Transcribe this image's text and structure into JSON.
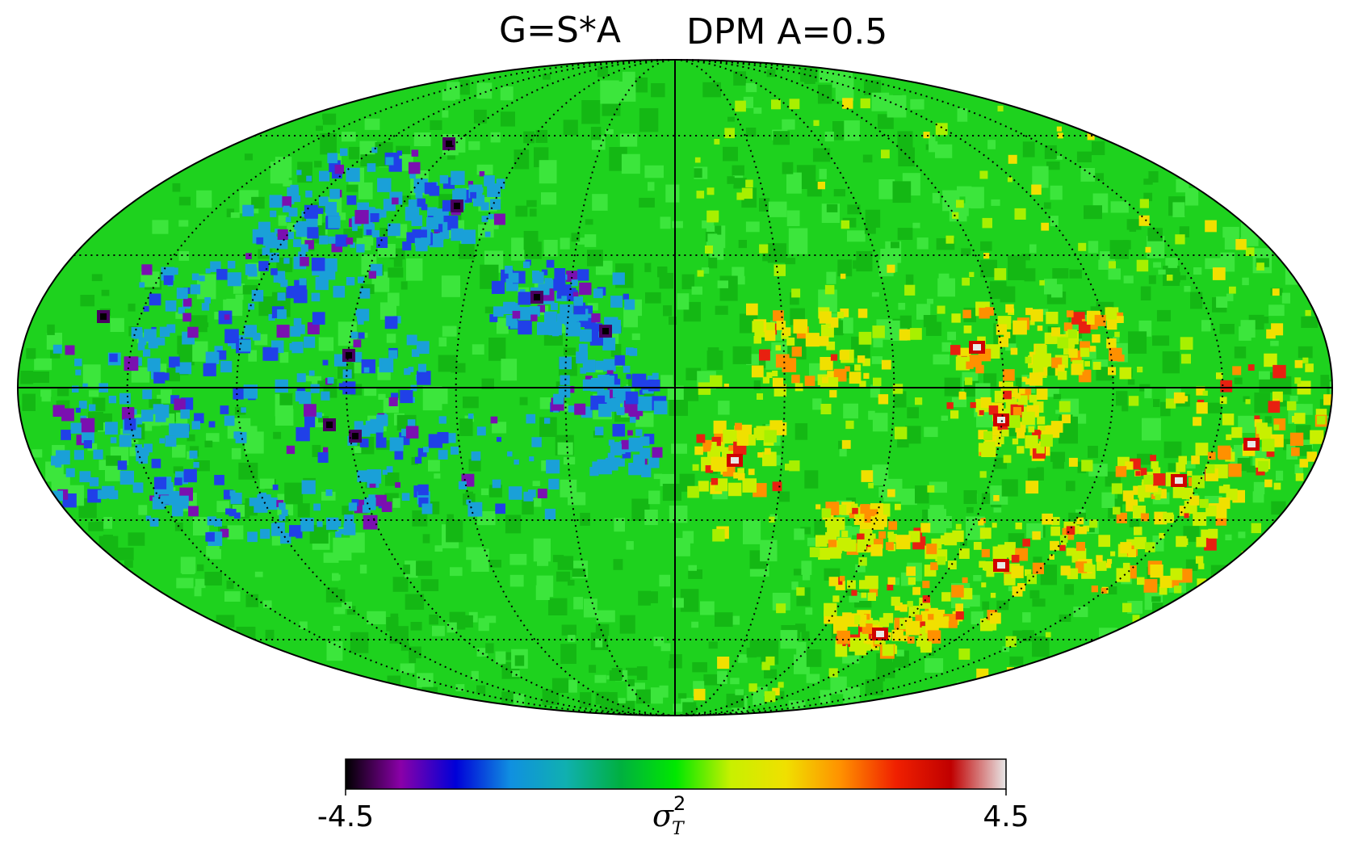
{
  "title": {
    "left": "G=S*A",
    "right": "DPM A=0.5"
  },
  "colorbar": {
    "min_label": "-4.5",
    "max_label": "4.5",
    "label_symbol": "σ",
    "label_superscript": "2",
    "label_subscript": "T",
    "min": -4.5,
    "max": 4.5,
    "stops": [
      "#000000",
      "#8a00a8",
      "#0000d8",
      "#1090e0",
      "#10b0b0",
      "#00b040",
      "#00e800",
      "#c8f000",
      "#f0e000",
      "#ff9000",
      "#f02000",
      "#c00000",
      "#e8e8e8"
    ]
  },
  "map": {
    "projection": "mollweide",
    "background_color": "#1ed21e",
    "graticule": "dotted",
    "hemispheres": {
      "left": "predominantly negative (blue/cyan/violet features)",
      "right": "predominantly positive (yellow/orange/red features)"
    }
  }
}
